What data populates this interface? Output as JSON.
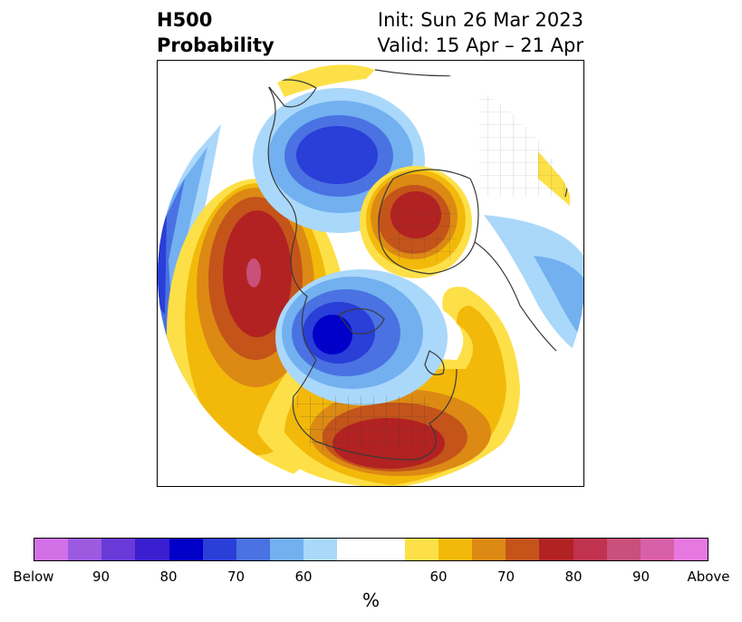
{
  "header": {
    "title_line1": "H500",
    "title_line2": "Probability",
    "init_text": "Init: Sun 26 Mar 2023",
    "valid_text": "Valid: 15 Apr – 21 Apr"
  },
  "map": {
    "projection": "north polar stereographic",
    "colors": {
      "below_60": "#aad8fa",
      "below_70": "#72b0f0",
      "below_80": "#4a72e2",
      "below_90": "#2a3ed8",
      "below_max": "#0000c8",
      "above_60": "#fde047",
      "above_70": "#f2b90a",
      "above_80": "#dc8a14",
      "above_90": "#c4541a",
      "above_max": "#b22222",
      "above_extreme": "#c8507a",
      "coast": "#3a3a3a"
    }
  },
  "colorbar": {
    "segments": [
      "#d270e8",
      "#9c5ae0",
      "#6a3ad8",
      "#3a1ed0",
      "#0000c8",
      "#2a3ed8",
      "#4a72e2",
      "#72b0f0",
      "#aad8fa",
      "#ffffff",
      "#ffffff",
      "#fde047",
      "#f2b90a",
      "#dc8a14",
      "#c4541a",
      "#b22222",
      "#c03250",
      "#c8507a",
      "#d860a8",
      "#e678e0"
    ],
    "labels": [
      "Below",
      "90",
      "80",
      "70",
      "60",
      "60",
      "70",
      "80",
      "90",
      "Above"
    ],
    "unit": "%"
  }
}
